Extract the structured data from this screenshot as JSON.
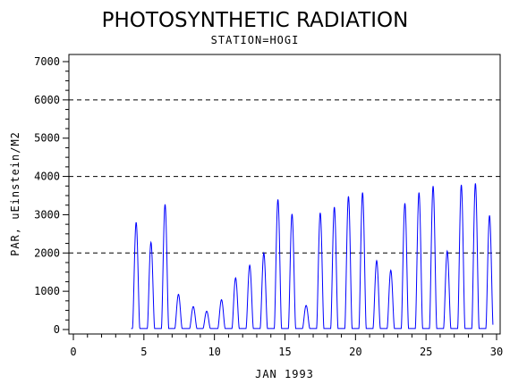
{
  "chart_data": {
    "type": "line",
    "title": "PHOTOSYNTHETIC RADIATION",
    "subtitle": "STATION=HOGI",
    "xlabel": "JAN 1993",
    "ylabel": "PAR, uEinstein/M2",
    "xlim": [
      0,
      30
    ],
    "ylim": [
      0,
      7000
    ],
    "x_ticks": [
      0,
      5,
      10,
      15,
      20,
      25,
      30
    ],
    "y_ticks": [
      0,
      1000,
      2000,
      3000,
      4000,
      5000,
      6000,
      7000
    ],
    "reference_lines": [
      2000,
      4000,
      6000
    ],
    "line_color": "#0000ff",
    "data_start_day": 4.1,
    "data_end_day": 29.75,
    "series": [
      {
        "daily_peaks": [
          {
            "day": 4.45,
            "value": 2800
          },
          {
            "day": 5.5,
            "value": 2280
          },
          {
            "day": 6.5,
            "value": 3270
          },
          {
            "day": 7.45,
            "value": 920
          },
          {
            "day": 8.5,
            "value": 600
          },
          {
            "day": 9.45,
            "value": 480
          },
          {
            "day": 10.5,
            "value": 780
          },
          {
            "day": 11.5,
            "value": 1350
          },
          {
            "day": 12.5,
            "value": 1680
          },
          {
            "day": 13.5,
            "value": 2000
          },
          {
            "day": 14.5,
            "value": 3400
          },
          {
            "day": 15.5,
            "value": 3020
          },
          {
            "day": 16.5,
            "value": 630
          },
          {
            "day": 17.5,
            "value": 3050
          },
          {
            "day": 18.5,
            "value": 3200
          },
          {
            "day": 19.5,
            "value": 3480
          },
          {
            "day": 20.5,
            "value": 3580
          },
          {
            "day": 21.5,
            "value": 1800
          },
          {
            "day": 22.5,
            "value": 1550
          },
          {
            "day": 23.5,
            "value": 3300
          },
          {
            "day": 24.5,
            "value": 3580
          },
          {
            "day": 25.5,
            "value": 3750
          },
          {
            "day": 26.5,
            "value": 2050
          },
          {
            "day": 27.5,
            "value": 3780
          },
          {
            "day": 28.5,
            "value": 3820
          },
          {
            "day": 29.5,
            "value": 2980
          }
        ]
      }
    ]
  }
}
